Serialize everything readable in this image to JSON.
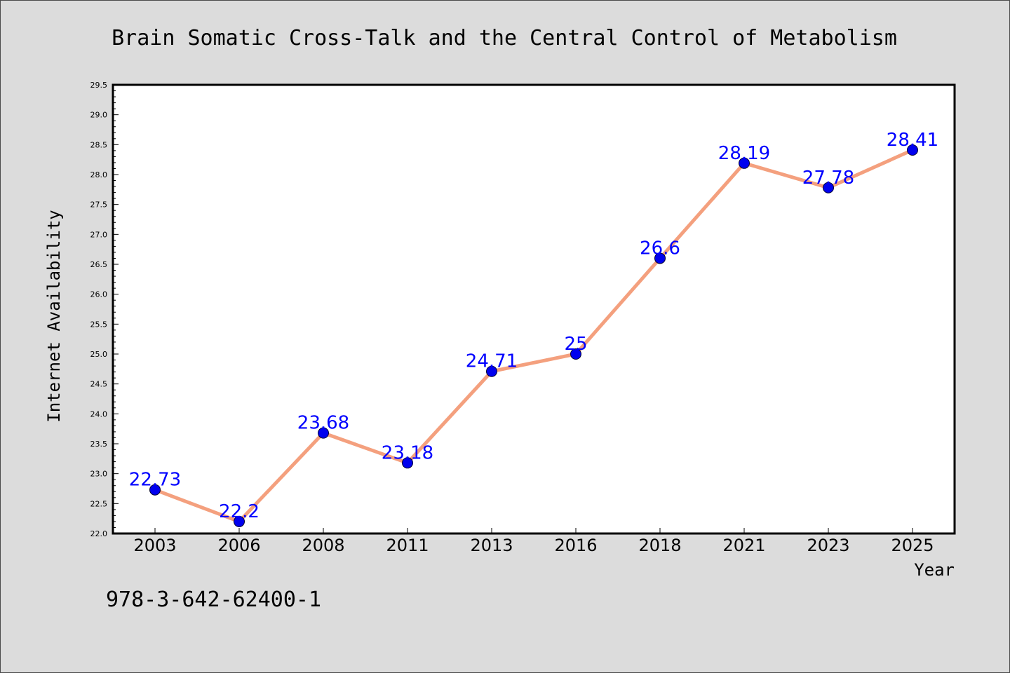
{
  "chart_data": {
    "type": "line",
    "title": "Brain Somatic Cross-Talk and the Central Control of Metabolism",
    "xlabel": "Year",
    "ylabel": "Internet Availability",
    "categories": [
      "2003",
      "2006",
      "2008",
      "2011",
      "2013",
      "2016",
      "2018",
      "2021",
      "2023",
      "2025"
    ],
    "series": [
      {
        "values": [
          22.73,
          22.2,
          23.68,
          23.18,
          24.71,
          25,
          26.6,
          28.19,
          27.78,
          28.41
        ],
        "data_labels": [
          "22.73",
          "22.2",
          "23.68",
          "23.18",
          "24.71",
          "25",
          "26.6",
          "28.19",
          "27.78",
          "28.41"
        ],
        "line_color": "#f4a07e",
        "marker_color": "#0000ee",
        "label_color": "#0000ff"
      }
    ],
    "ylim": [
      22.0,
      29.5
    ],
    "yticks": [
      "22.0",
      "22.5",
      "23.0",
      "23.5",
      "24.0",
      "24.5",
      "25.0",
      "25.5",
      "26.0",
      "26.5",
      "27.0",
      "27.5",
      "28.0",
      "28.5",
      "29.0",
      "29.5"
    ],
    "ytick_minor_step": 0.1,
    "grid": false,
    "legend": "none"
  },
  "footnote": "978-3-642-62400-1",
  "colors": {
    "background": "#dcdcdc",
    "plot_area": "#ffffff",
    "axis": "#000000"
  }
}
